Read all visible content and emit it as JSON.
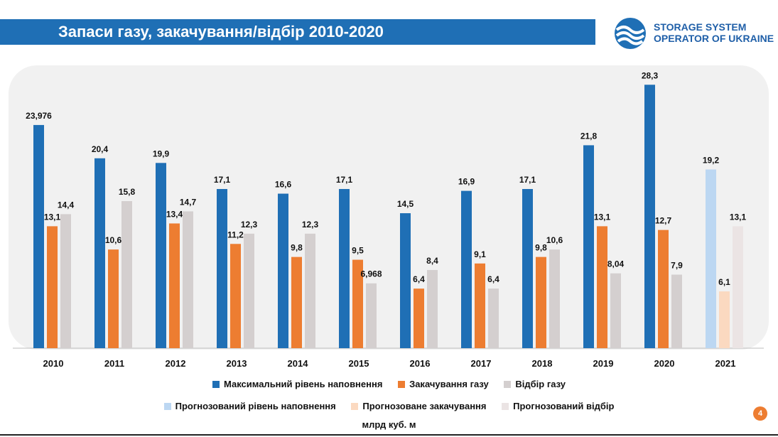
{
  "slide": {
    "title": "Запаси газу, закачування/відбір 2010-2020",
    "logo_line1": "STORAGE SYSTEM",
    "logo_line2": "OPERATOR OF UKRAINE",
    "page_number": "4",
    "unit_label": "млрд куб. м"
  },
  "colors": {
    "title_bar": "#1f6fb5",
    "max_level": "#1f6fb5",
    "injection": "#ed7d31",
    "withdrawal": "#d4cfcf",
    "forecast_level": "#bcd7f2",
    "forecast_injection": "#fbd9c0",
    "forecast_withdrawal": "#ebe4e4",
    "page_badge": "#ed7d31"
  },
  "chart_data": {
    "type": "bar",
    "categories": [
      "2010",
      "2011",
      "2012",
      "2013",
      "2014",
      "2015",
      "2016",
      "2017",
      "2018",
      "2019",
      "2020",
      "2021"
    ],
    "series": [
      {
        "name": "Максимальний рівень наповнення",
        "values": [
          23.976,
          20.4,
          19.9,
          17.1,
          16.6,
          17.1,
          14.5,
          16.9,
          17.1,
          21.8,
          28.3,
          null
        ],
        "labels": [
          "23,976",
          "20,4",
          "19,9",
          "17,1",
          "16,6",
          "17,1",
          "14,5",
          "16,9",
          "17,1",
          "21,8",
          "28,3",
          ""
        ]
      },
      {
        "name": "Закачування газу",
        "values": [
          13.1,
          10.6,
          13.4,
          11.2,
          9.8,
          9.5,
          6.4,
          9.1,
          9.8,
          13.1,
          12.7,
          null
        ],
        "labels": [
          "13,1",
          "10,6",
          "13,4",
          "11,2",
          "9,8",
          "9,5",
          "6,4",
          "9,1",
          "9,8",
          "13,1",
          "12,7",
          ""
        ]
      },
      {
        "name": "Відбір газу",
        "values": [
          14.4,
          15.8,
          14.7,
          12.3,
          12.3,
          6.968,
          8.4,
          6.4,
          10.6,
          8.04,
          7.9,
          null
        ],
        "labels": [
          "14,4",
          "15,8",
          "14,7",
          "12,3",
          "12,3",
          "6,968",
          "8,4",
          "6,4",
          "10,6",
          "8,04",
          "7,9",
          ""
        ]
      },
      {
        "name": "Прогнозований рівень наповнення",
        "values": [
          null,
          null,
          null,
          null,
          null,
          null,
          null,
          null,
          null,
          null,
          null,
          19.2
        ],
        "labels": [
          "",
          "",
          "",
          "",
          "",
          "",
          "",
          "",
          "",
          "",
          "",
          "19,2"
        ]
      },
      {
        "name": "Прогнозоване закачування",
        "values": [
          null,
          null,
          null,
          null,
          null,
          null,
          null,
          null,
          null,
          null,
          null,
          6.1
        ],
        "labels": [
          "",
          "",
          "",
          "",
          "",
          "",
          "",
          "",
          "",
          "",
          "",
          "6,1"
        ]
      },
      {
        "name": "Прогнозований відбір",
        "values": [
          null,
          null,
          null,
          null,
          null,
          null,
          null,
          null,
          null,
          null,
          null,
          13.1
        ],
        "labels": [
          "",
          "",
          "",
          "",
          "",
          "",
          "",
          "",
          "",
          "",
          "",
          "13,1"
        ]
      }
    ],
    "title": "",
    "xlabel": "",
    "ylabel": "млрд куб. м",
    "ylim": [
      0,
      30
    ],
    "grid": false,
    "legend_position": "bottom"
  },
  "legend": {
    "row1": [
      "Максимальний рівень наповнення",
      "Закачування газу",
      "Відбір газу"
    ],
    "row2": [
      "Прогнозований рівень наповнення",
      "Прогнозоване закачування",
      "Прогнозований відбір"
    ]
  }
}
